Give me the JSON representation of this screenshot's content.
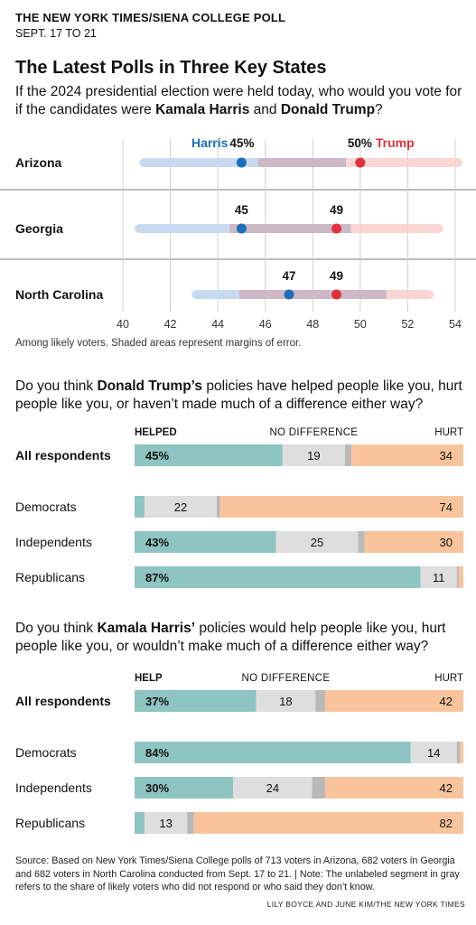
{
  "kicker": "THE NEW YORK TIMES/SIENA COLLEGE POLL",
  "dates": "SEPT. 17 TO 21",
  "title": "The Latest Polls in Three Key States",
  "question1": {
    "pre": "If the 2024 presidential election were held today, who would you vote for if the candidates were ",
    "harris": "Kamala Harris",
    "and": " and ",
    "trump": "Donald Trump",
    "post": "?"
  },
  "note": "Among likely voters. Shaded areas represent margins of error.",
  "question2": {
    "pre": "Do you think ",
    "name": "Donald Trump’s",
    "post": " policies have helped people like you, hurt people like you, or haven’t made much of a difference either way?"
  },
  "question3": {
    "pre": "Do you think ",
    "name": "Kamala Harris’",
    "post": " policies would help people like you, hurt people like you, or wouldn’t make much of a difference either way?"
  },
  "source": "Source: Based on New York Times/Siena College polls of 713 voters in Arizona, 682 voters in Georgia and 682 voters in North Carolina conducted from Sept. 17 to 21. | Note: The unlabeled segment in gray refers to the share of likely voters who did not respond or who said they don’t know.",
  "credit": "LILY BOYCE AND JUNE KIM/THE NEW YORK TIMES",
  "colors": {
    "harris": "#1a6fb8",
    "trump": "#e2313d",
    "harris_band": "#c8daf0",
    "trump_band": "#f8cfcd",
    "overlap": "#cdb8c6",
    "helped": "#8ec4c1",
    "nodiff": "#dedede",
    "unlabeled": "#b9b9b9",
    "hurt": "#f9c49c"
  },
  "chart_data": [
    {
      "type": "dot-range",
      "x_ticks": [
        40,
        42,
        44,
        46,
        48,
        50,
        52,
        54
      ],
      "xlim": [
        40,
        54
      ],
      "series_names": [
        "Harris",
        "Trump"
      ],
      "rows": [
        {
          "state": "Arizona",
          "harris": 45,
          "trump": 50,
          "harris_label": "45%",
          "trump_label": "50%",
          "harris_range": [
            40.7,
            49.4
          ],
          "trump_range": [
            45.7,
            54.3
          ]
        },
        {
          "state": "Georgia",
          "harris": 45,
          "trump": 49,
          "harris_label": "45",
          "trump_label": "49",
          "harris_range": [
            40.5,
            49.6
          ],
          "trump_range": [
            44.5,
            53.5
          ]
        },
        {
          "state": "North Carolina",
          "harris": 47,
          "trump": 49,
          "harris_label": "47",
          "trump_label": "49",
          "harris_range": [
            42.9,
            51.1
          ],
          "trump_range": [
            44.9,
            53.1
          ]
        }
      ]
    },
    {
      "type": "bar",
      "stacked": true,
      "legend": [
        "HELPED",
        "NO DIFFERENCE",
        "HURT"
      ],
      "rows": [
        {
          "group": "All respondents",
          "values": [
            45,
            19,
            2,
            34
          ],
          "labels": [
            "45%",
            "19",
            "",
            "34"
          ]
        },
        {
          "group": "Democrats",
          "values": [
            3,
            22,
            1,
            74
          ],
          "labels": [
            "",
            "22",
            "",
            "74"
          ]
        },
        {
          "group": "Independents",
          "values": [
            43,
            25,
            2,
            30
          ],
          "labels": [
            "43%",
            "25",
            "",
            "30"
          ]
        },
        {
          "group": "Republicans",
          "values": [
            87,
            11,
            0.5,
            1.5
          ],
          "labels": [
            "87%",
            "11",
            "",
            ""
          ]
        }
      ]
    },
    {
      "type": "bar",
      "stacked": true,
      "legend": [
        "HELP",
        "NO DIFFERENCE",
        "HURT"
      ],
      "rows": [
        {
          "group": "All respondents",
          "values": [
            37,
            18,
            3,
            42
          ],
          "labels": [
            "37%",
            "18",
            "",
            "42"
          ]
        },
        {
          "group": "Democrats",
          "values": [
            84,
            14,
            1,
            1
          ],
          "labels": [
            "84%",
            "14",
            "",
            ""
          ]
        },
        {
          "group": "Independents",
          "values": [
            30,
            24,
            4,
            42
          ],
          "labels": [
            "30%",
            "24",
            "",
            "42"
          ]
        },
        {
          "group": "Republicans",
          "values": [
            3,
            13,
            2,
            82
          ],
          "labels": [
            "",
            "13",
            "",
            "82"
          ]
        }
      ]
    }
  ]
}
